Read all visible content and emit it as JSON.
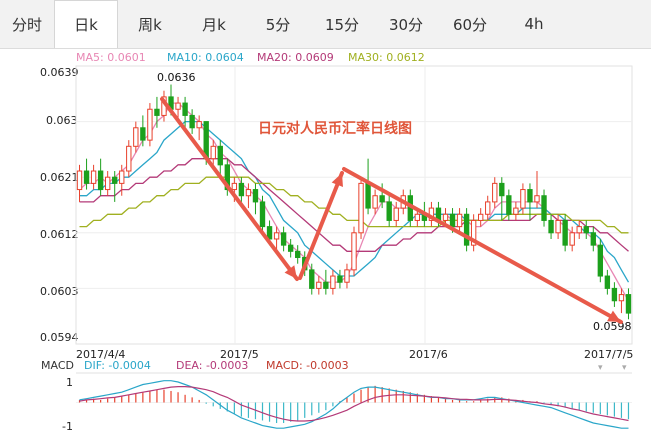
{
  "tabs": [
    {
      "label": "分时",
      "active": false
    },
    {
      "label": "日k",
      "active": true
    },
    {
      "label": "周k",
      "active": false
    },
    {
      "label": "月k",
      "active": false
    },
    {
      "label": "5分",
      "active": false
    },
    {
      "label": "15分",
      "active": false
    },
    {
      "label": "30分",
      "active": false
    },
    {
      "label": "60分",
      "active": false
    },
    {
      "label": "4h",
      "active": false
    }
  ],
  "ma_legend": [
    {
      "label": "MA5: 0.0601",
      "color": "#e887b4"
    },
    {
      "label": "MA10: 0.0604",
      "color": "#2aa6c9"
    },
    {
      "label": "MA20: 0.0609",
      "color": "#b43a78"
    },
    {
      "label": "MA30: 0.0612",
      "color": "#a0b020"
    }
  ],
  "macd_legend": {
    "name": "MACD",
    "dif": "DIF: -0.0004",
    "dea": "DEA: -0.0003",
    "macd": "MACD: -0.0003",
    "dif_color": "#2aa6c9",
    "dea_color": "#b43a78",
    "macd_color": "#c0392b"
  },
  "chart_data": {
    "type": "candlestick",
    "title": "日元对人民币汇率日线图",
    "title_color": "#e0563a",
    "y_ticks": [
      "0.0639",
      "0.063",
      "0.0621",
      "0.0612",
      "0.0603",
      "0.0594"
    ],
    "ylim": [
      0.0594,
      0.0639
    ],
    "x_ticks": [
      "2017/4/4",
      "2017/5",
      "2017/6",
      "2017/7/5"
    ],
    "annotations": {
      "high": "0.0636",
      "low": "0.0598"
    },
    "macd_y_ticks": [
      "1",
      "-1"
    ],
    "up_color": "#e8412c",
    "down_color": "#1ca01c",
    "candles": [
      [
        0.0619,
        0.0622,
        0.0623,
        0.0617
      ],
      [
        0.0622,
        0.062,
        0.0624,
        0.0619
      ],
      [
        0.062,
        0.0622,
        0.0623,
        0.0619
      ],
      [
        0.0622,
        0.0619,
        0.0624,
        0.0618
      ],
      [
        0.0619,
        0.0621,
        0.0622,
        0.0618
      ],
      [
        0.0621,
        0.062,
        0.0622,
        0.0617
      ],
      [
        0.062,
        0.0622,
        0.0623,
        0.0618
      ],
      [
        0.0622,
        0.0626,
        0.0627,
        0.0621
      ],
      [
        0.0626,
        0.0629,
        0.063,
        0.0625
      ],
      [
        0.0629,
        0.0627,
        0.0631,
        0.0626
      ],
      [
        0.0627,
        0.0632,
        0.0633,
        0.0626
      ],
      [
        0.0632,
        0.0631,
        0.0634,
        0.0629
      ],
      [
        0.0631,
        0.0634,
        0.0635,
        0.063
      ],
      [
        0.0634,
        0.0632,
        0.0636,
        0.0631
      ],
      [
        0.0632,
        0.0633,
        0.0634,
        0.063
      ],
      [
        0.0633,
        0.0631,
        0.0634,
        0.0629
      ],
      [
        0.0631,
        0.0629,
        0.0632,
        0.0628
      ],
      [
        0.0629,
        0.063,
        0.0631,
        0.0627
      ],
      [
        0.063,
        0.0624,
        0.063,
        0.0623
      ],
      [
        0.0624,
        0.0626,
        0.0627,
        0.0623
      ],
      [
        0.0626,
        0.0623,
        0.0627,
        0.0621
      ],
      [
        0.0623,
        0.0619,
        0.0624,
        0.0618
      ],
      [
        0.0619,
        0.062,
        0.0621,
        0.0617
      ],
      [
        0.062,
        0.0618,
        0.0621,
        0.0617
      ],
      [
        0.0618,
        0.0619,
        0.062,
        0.0616
      ],
      [
        0.0619,
        0.0617,
        0.062,
        0.0615
      ],
      [
        0.0617,
        0.0613,
        0.0618,
        0.0612
      ],
      [
        0.0613,
        0.0611,
        0.0614,
        0.061
      ],
      [
        0.0611,
        0.0612,
        0.0613,
        0.0609
      ],
      [
        0.0612,
        0.061,
        0.0613,
        0.0609
      ],
      [
        0.061,
        0.0609,
        0.0611,
        0.0608
      ],
      [
        0.0609,
        0.0608,
        0.061,
        0.0607
      ],
      [
        0.0608,
        0.0606,
        0.0609,
        0.0605
      ],
      [
        0.0606,
        0.0603,
        0.0607,
        0.0602
      ],
      [
        0.0603,
        0.0604,
        0.0605,
        0.0602
      ],
      [
        0.0604,
        0.0603,
        0.0606,
        0.0602
      ],
      [
        0.0603,
        0.0605,
        0.0606,
        0.0602
      ],
      [
        0.0605,
        0.0604,
        0.0606,
        0.0603
      ],
      [
        0.0604,
        0.0606,
        0.0607,
        0.0603
      ],
      [
        0.0606,
        0.0612,
        0.0613,
        0.0605
      ],
      [
        0.0612,
        0.062,
        0.0621,
        0.0611
      ],
      [
        0.062,
        0.0616,
        0.0624,
        0.0615
      ],
      [
        0.0616,
        0.0618,
        0.0619,
        0.0615
      ],
      [
        0.0618,
        0.0617,
        0.062,
        0.0616
      ],
      [
        0.0617,
        0.0614,
        0.0618,
        0.0613
      ],
      [
        0.0614,
        0.0616,
        0.0617,
        0.0613
      ],
      [
        0.0616,
        0.0618,
        0.0619,
        0.0615
      ],
      [
        0.0618,
        0.0614,
        0.0619,
        0.0613
      ],
      [
        0.0614,
        0.0615,
        0.0616,
        0.0613
      ],
      [
        0.0615,
        0.0614,
        0.0617,
        0.0613
      ],
      [
        0.0614,
        0.0616,
        0.0617,
        0.0613
      ],
      [
        0.0616,
        0.0614,
        0.0617,
        0.0613
      ],
      [
        0.0614,
        0.0615,
        0.0616,
        0.0613
      ],
      [
        0.0615,
        0.0613,
        0.0616,
        0.0612
      ],
      [
        0.0613,
        0.0615,
        0.0616,
        0.0612
      ],
      [
        0.0615,
        0.061,
        0.0616,
        0.0609
      ],
      [
        0.061,
        0.0614,
        0.0615,
        0.0609
      ],
      [
        0.0614,
        0.0615,
        0.0616,
        0.0613
      ],
      [
        0.0615,
        0.0617,
        0.0618,
        0.0614
      ],
      [
        0.0617,
        0.062,
        0.0621,
        0.0616
      ],
      [
        0.062,
        0.0618,
        0.0621,
        0.0614
      ],
      [
        0.0618,
        0.0615,
        0.0619,
        0.0614
      ],
      [
        0.0615,
        0.0616,
        0.0617,
        0.0614
      ],
      [
        0.0616,
        0.0619,
        0.062,
        0.0615
      ],
      [
        0.0619,
        0.0617,
        0.062,
        0.0614
      ],
      [
        0.0617,
        0.0618,
        0.0622,
        0.0616
      ],
      [
        0.0618,
        0.0614,
        0.0619,
        0.0613
      ],
      [
        0.0614,
        0.0612,
        0.0615,
        0.0611
      ],
      [
        0.0612,
        0.0614,
        0.0615,
        0.0611
      ],
      [
        0.0614,
        0.061,
        0.0615,
        0.0609
      ],
      [
        0.061,
        0.0612,
        0.0613,
        0.0609
      ],
      [
        0.0612,
        0.0613,
        0.0614,
        0.0611
      ],
      [
        0.0613,
        0.0612,
        0.0614,
        0.0611
      ],
      [
        0.0612,
        0.061,
        0.0613,
        0.0609
      ],
      [
        0.061,
        0.0605,
        0.0611,
        0.0604
      ],
      [
        0.0605,
        0.0603,
        0.0606,
        0.0602
      ],
      [
        0.0603,
        0.0601,
        0.0604,
        0.06
      ],
      [
        0.0601,
        0.0602,
        0.0603,
        0.0599
      ],
      [
        0.0602,
        0.0599,
        0.0603,
        0.0598
      ]
    ],
    "ma_series": {
      "ma5": [
        0.0619,
        0.062,
        0.062,
        0.0621,
        0.062,
        0.0621,
        0.0622,
        0.0623,
        0.0625,
        0.0627,
        0.0628,
        0.063,
        0.0631,
        0.0633,
        0.0633,
        0.0632,
        0.0631,
        0.063,
        0.0628,
        0.0627,
        0.0625,
        0.0624,
        0.0622,
        0.062,
        0.0619,
        0.0618,
        0.0617,
        0.0615,
        0.0613,
        0.0611,
        0.061,
        0.0609,
        0.0608,
        0.0606,
        0.0605,
        0.0604,
        0.0604,
        0.0604,
        0.0605,
        0.0607,
        0.061,
        0.0613,
        0.0615,
        0.0617,
        0.0617,
        0.0616,
        0.0616,
        0.0616,
        0.0616,
        0.0615,
        0.0615,
        0.0615,
        0.0615,
        0.0614,
        0.0614,
        0.0614,
        0.0613,
        0.0613,
        0.0614,
        0.0616,
        0.0617,
        0.0617,
        0.0617,
        0.0617,
        0.0617,
        0.0617,
        0.0616,
        0.0615,
        0.0614,
        0.0613,
        0.0612,
        0.0612,
        0.0612,
        0.0611,
        0.0609,
        0.0607,
        0.0605,
        0.0603,
        0.0601
      ],
      "ma10": [
        0.0618,
        0.0618,
        0.0619,
        0.0619,
        0.062,
        0.062,
        0.0621,
        0.0621,
        0.0622,
        0.0623,
        0.0624,
        0.0625,
        0.0627,
        0.0628,
        0.0629,
        0.063,
        0.063,
        0.063,
        0.0629,
        0.0628,
        0.0627,
        0.0626,
        0.0625,
        0.0624,
        0.0622,
        0.0621,
        0.0619,
        0.0618,
        0.0616,
        0.0614,
        0.0613,
        0.0612,
        0.061,
        0.0609,
        0.0608,
        0.0607,
        0.0606,
        0.0605,
        0.0605,
        0.0605,
        0.0606,
        0.0607,
        0.0608,
        0.061,
        0.0611,
        0.0612,
        0.0613,
        0.0614,
        0.0615,
        0.0615,
        0.0615,
        0.0615,
        0.0615,
        0.0615,
        0.0615,
        0.0614,
        0.0614,
        0.0614,
        0.0614,
        0.0615,
        0.0615,
        0.0615,
        0.0615,
        0.0616,
        0.0616,
        0.0616,
        0.0616,
        0.0615,
        0.0615,
        0.0614,
        0.0614,
        0.0613,
        0.0612,
        0.0612,
        0.0611,
        0.0609,
        0.0608,
        0.0606,
        0.0604
      ],
      "ma20": [
        0.0617,
        0.0617,
        0.0617,
        0.0618,
        0.0618,
        0.0618,
        0.0619,
        0.0619,
        0.062,
        0.062,
        0.0621,
        0.0621,
        0.0622,
        0.0622,
        0.0623,
        0.0623,
        0.0624,
        0.0624,
        0.0624,
        0.0624,
        0.0624,
        0.0624,
        0.0623,
        0.0623,
        0.0622,
        0.0621,
        0.062,
        0.0619,
        0.0618,
        0.0617,
        0.0616,
        0.0615,
        0.0614,
        0.0613,
        0.0612,
        0.0611,
        0.061,
        0.061,
        0.0609,
        0.0609,
        0.0609,
        0.0609,
        0.0609,
        0.061,
        0.061,
        0.061,
        0.0611,
        0.0611,
        0.0612,
        0.0612,
        0.0612,
        0.0613,
        0.0613,
        0.0613,
        0.0613,
        0.0614,
        0.0614,
        0.0614,
        0.0614,
        0.0614,
        0.0614,
        0.0614,
        0.0614,
        0.0614,
        0.0614,
        0.0615,
        0.0615,
        0.0615,
        0.0614,
        0.0614,
        0.0614,
        0.0614,
        0.0613,
        0.0613,
        0.0612,
        0.0612,
        0.0611,
        0.061,
        0.0609
      ],
      "ma30": [
        0.0613,
        0.0613,
        0.0614,
        0.0614,
        0.0615,
        0.0615,
        0.0615,
        0.0616,
        0.0616,
        0.0617,
        0.0617,
        0.0618,
        0.0618,
        0.0619,
        0.0619,
        0.062,
        0.062,
        0.062,
        0.0621,
        0.0621,
        0.0621,
        0.0621,
        0.0621,
        0.0621,
        0.0621,
        0.062,
        0.062,
        0.062,
        0.0619,
        0.0619,
        0.0618,
        0.0618,
        0.0617,
        0.0617,
        0.0616,
        0.0616,
        0.0615,
        0.0615,
        0.0614,
        0.0614,
        0.0614,
        0.0613,
        0.0613,
        0.0613,
        0.0613,
        0.0613,
        0.0613,
        0.0613,
        0.0613,
        0.0613,
        0.0613,
        0.0613,
        0.0614,
        0.0614,
        0.0614,
        0.0614,
        0.0614,
        0.0614,
        0.0614,
        0.0614,
        0.0614,
        0.0615,
        0.0615,
        0.0615,
        0.0615,
        0.0615,
        0.0615,
        0.0615,
        0.0615,
        0.0615,
        0.0614,
        0.0614,
        0.0614,
        0.0614,
        0.0614,
        0.0613,
        0.0613,
        0.0612,
        0.0612
      ]
    },
    "macd_hist": [
      0.1,
      0.1,
      0.15,
      0.1,
      0.15,
      0.2,
      0.25,
      0.3,
      0.35,
      0.4,
      0.45,
      0.5,
      0.5,
      0.45,
      0.4,
      0.3,
      0.2,
      0.1,
      -0.05,
      -0.15,
      -0.25,
      -0.35,
      -0.45,
      -0.55,
      -0.6,
      -0.65,
      -0.7,
      -0.75,
      -0.8,
      -0.8,
      -0.75,
      -0.7,
      -0.6,
      -0.5,
      -0.4,
      -0.3,
      -0.15,
      0.05,
      0.2,
      0.35,
      0.5,
      0.6,
      0.65,
      0.6,
      0.55,
      0.5,
      0.45,
      0.4,
      0.35,
      0.3,
      0.25,
      0.2,
      0.15,
      0.1,
      0.1,
      0.05,
      0.05,
      0.1,
      0.15,
      0.2,
      0.2,
      0.15,
      0.1,
      0.1,
      0.05,
      0.05,
      -0.05,
      -0.1,
      -0.15,
      -0.2,
      -0.25,
      -0.3,
      -0.35,
      -0.4,
      -0.45,
      -0.5,
      -0.55,
      -0.6,
      -0.65
    ],
    "dif": [
      0.1,
      0.15,
      0.2,
      0.25,
      0.3,
      0.35,
      0.4,
      0.5,
      0.6,
      0.7,
      0.75,
      0.8,
      0.85,
      0.85,
      0.8,
      0.7,
      0.6,
      0.45,
      0.3,
      0.1,
      -0.1,
      -0.3,
      -0.45,
      -0.6,
      -0.7,
      -0.8,
      -0.9,
      -0.95,
      -1.0,
      -1.0,
      -0.95,
      -0.9,
      -0.85,
      -0.75,
      -0.6,
      -0.45,
      -0.25,
      0.0,
      0.2,
      0.4,
      0.55,
      0.6,
      0.6,
      0.55,
      0.5,
      0.45,
      0.4,
      0.35,
      0.3,
      0.25,
      0.2,
      0.2,
      0.15,
      0.15,
      0.1,
      0.1,
      0.1,
      0.15,
      0.2,
      0.2,
      0.15,
      0.1,
      0.05,
      0.0,
      -0.05,
      -0.1,
      -0.15,
      -0.2,
      -0.3,
      -0.4,
      -0.5,
      -0.6,
      -0.7,
      -0.8,
      -0.85,
      -0.9,
      -0.95,
      -1.0,
      -1.0
    ],
    "dea": [
      0.05,
      0.1,
      0.12,
      0.15,
      0.18,
      0.2,
      0.25,
      0.3,
      0.35,
      0.4,
      0.45,
      0.5,
      0.55,
      0.6,
      0.62,
      0.62,
      0.6,
      0.55,
      0.5,
      0.42,
      0.3,
      0.2,
      0.05,
      -0.1,
      -0.2,
      -0.3,
      -0.4,
      -0.5,
      -0.58,
      -0.65,
      -0.7,
      -0.72,
      -0.72,
      -0.7,
      -0.65,
      -0.58,
      -0.5,
      -0.4,
      -0.3,
      -0.15,
      -0.02,
      0.1,
      0.2,
      0.25,
      0.28,
      0.3,
      0.3,
      0.28,
      0.27,
      0.25,
      0.22,
      0.2,
      0.18,
      0.15,
      0.13,
      0.12,
      0.1,
      0.1,
      0.1,
      0.12,
      0.12,
      0.1,
      0.08,
      0.05,
      0.02,
      0.0,
      -0.05,
      -0.08,
      -0.12,
      -0.18,
      -0.25,
      -0.3,
      -0.38,
      -0.45,
      -0.5,
      -0.55,
      -0.6,
      -0.65,
      -0.7
    ]
  }
}
